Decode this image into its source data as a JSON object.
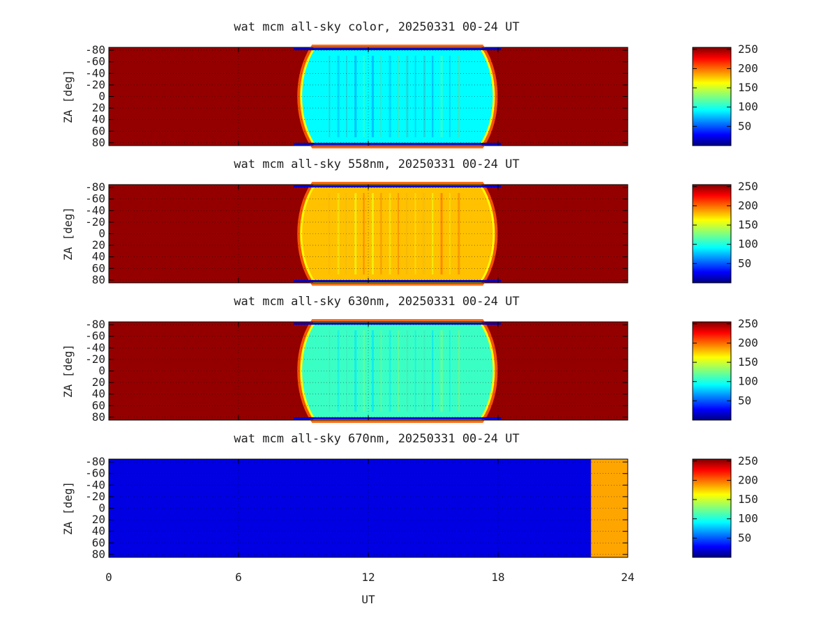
{
  "chart_data": {
    "type": "heatmap",
    "xlabel": "UT",
    "x_ticks": [
      "0",
      "6",
      "12",
      "18",
      "24"
    ],
    "xlim": [
      0,
      24
    ],
    "colormap": "jet",
    "colors": {
      "low": "#00007f",
      "mid": "#7fff7f",
      "high": "#7f0000",
      "orange_block": "#ffa500"
    },
    "panels": [
      {
        "title": "wat mcm all-sky color, 20250331 00-24 UT",
        "ylabel": "ZA [deg]",
        "y_ticks": [
          "-80",
          "-60",
          "-40",
          "-20",
          "0",
          "20",
          "40",
          "60",
          "80"
        ],
        "ylim": [
          -85,
          85
        ],
        "colorbar_ticks": [
          "250",
          "200",
          "150",
          "100",
          "50"
        ],
        "colorbar_range": [
          0,
          255
        ],
        "night_start_ut": 9.2,
        "night_end_ut": 17.5,
        "day_value": 250,
        "night_value": 95,
        "grid": true
      },
      {
        "title": "wat mcm all-sky 558nm, 20250331 00-24 UT",
        "ylabel": "ZA [deg]",
        "y_ticks": [
          "-80",
          "-60",
          "-40",
          "-20",
          "0",
          "20",
          "40",
          "60",
          "80"
        ],
        "ylim": [
          -85,
          85
        ],
        "colorbar_ticks": [
          "250",
          "200",
          "150",
          "100",
          "50"
        ],
        "colorbar_range": [
          0,
          255
        ],
        "night_start_ut": 9.2,
        "night_end_ut": 17.5,
        "day_value": 250,
        "night_value": 175,
        "grid": true
      },
      {
        "title": "wat mcm all-sky 630nm, 20250331 00-24 UT",
        "ylabel": "ZA [deg]",
        "y_ticks": [
          "-80",
          "-60",
          "-40",
          "-20",
          "0",
          "20",
          "40",
          "60",
          "80"
        ],
        "ylim": [
          -85,
          85
        ],
        "colorbar_ticks": [
          "250",
          "200",
          "150",
          "100",
          "50"
        ],
        "colorbar_range": [
          0,
          255
        ],
        "night_start_ut": 9.2,
        "night_end_ut": 17.5,
        "day_value": 250,
        "night_value": 110,
        "grid": true
      },
      {
        "title": "wat mcm all-sky 670nm, 20250331 00-24 UT",
        "ylabel": "ZA [deg]",
        "y_ticks": [
          "-80",
          "-60",
          "-40",
          "-20",
          "0",
          "20",
          "40",
          "60",
          "80"
        ],
        "ylim": [
          -85,
          85
        ],
        "colorbar_ticks": [
          "250",
          "200",
          "150",
          "100",
          "50"
        ],
        "colorbar_range": [
          0,
          255
        ],
        "base_value": 25,
        "orange_block_start_ut": 22.3,
        "grid": true
      }
    ]
  }
}
